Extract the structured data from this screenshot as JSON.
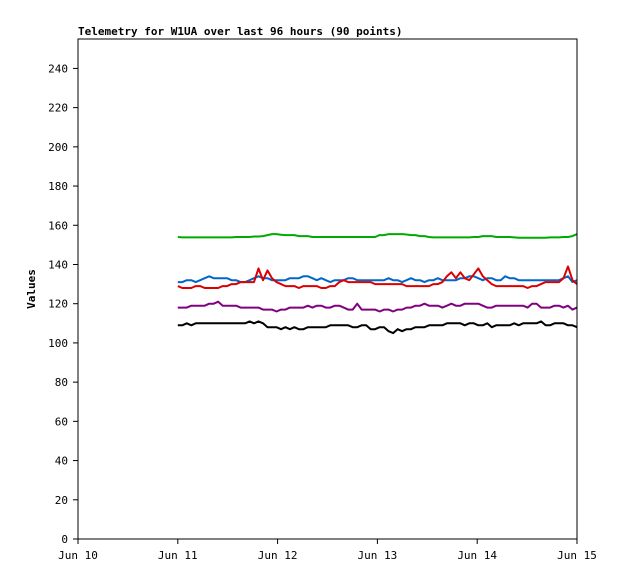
{
  "chart_data": {
    "type": "line",
    "title": "Telemetry for W1UA over last 96 hours (90 points)",
    "xlabel": "",
    "ylabel": "Values",
    "ylim": [
      0,
      255
    ],
    "yticks": [
      0,
      20,
      40,
      60,
      80,
      100,
      120,
      140,
      160,
      180,
      200,
      220,
      240
    ],
    "xlim": [
      "Jun 10",
      "Jun 15"
    ],
    "xticks": [
      "Jun 10",
      "Jun 11",
      "Jun 12",
      "Jun 13",
      "Jun 14",
      "Jun 15"
    ],
    "x_axis_unit": "days",
    "x_start": 1.0,
    "x_step": 0.04494,
    "grid": false,
    "legend": "none",
    "series": [
      {
        "color": "#00aa00",
        "values": [
          154,
          153.8,
          153.8,
          153.8,
          153.8,
          153.8,
          153.8,
          153.8,
          153.8,
          153.8,
          153.8,
          153.8,
          153.8,
          154,
          154,
          154,
          154,
          154.3,
          154.3,
          154.5,
          155,
          155.5,
          155.5,
          155.2,
          155,
          155,
          155,
          154.5,
          154.5,
          154.5,
          154,
          154,
          154,
          154,
          154,
          154,
          154,
          154,
          154,
          154,
          154,
          154,
          154,
          154,
          154,
          155,
          155,
          155.5,
          155.5,
          155.5,
          155.5,
          155.3,
          155,
          155,
          154.5,
          154.5,
          154,
          153.8,
          153.8,
          153.8,
          153.8,
          153.8,
          153.8,
          153.8,
          153.8,
          153.8,
          154,
          154,
          154.5,
          154.5,
          154.5,
          154,
          154,
          154,
          154,
          153.8,
          153.6,
          153.6,
          153.6,
          153.6,
          153.6,
          153.6,
          153.6,
          153.8,
          153.8,
          153.8,
          154,
          154,
          154.5,
          155.5
        ]
      },
      {
        "color": "#0066cc",
        "values": [
          131,
          131,
          132,
          132,
          131,
          132,
          133,
          134,
          133,
          133,
          133,
          133,
          132,
          132,
          131,
          131,
          132,
          133,
          134,
          133,
          133,
          132,
          132,
          132,
          132,
          133,
          133,
          133,
          134,
          134,
          133,
          132,
          133,
          132,
          131,
          132,
          132,
          132,
          133,
          133,
          132,
          132,
          132,
          132,
          132,
          132,
          132,
          133,
          132,
          132,
          131,
          132,
          133,
          132,
          132,
          131,
          132,
          132,
          133,
          132,
          132,
          132,
          132,
          133,
          133,
          134,
          134,
          133,
          132,
          133,
          133,
          132,
          132,
          134,
          133,
          133,
          132,
          132,
          132,
          132,
          132,
          132,
          132,
          132,
          132,
          132,
          133,
          134,
          131,
          132
        ]
      },
      {
        "color": "#dd0000",
        "values": [
          129,
          128,
          128,
          128,
          129,
          129,
          128,
          128,
          128,
          128,
          129,
          129,
          130,
          130,
          131,
          131,
          131,
          131,
          138,
          132,
          137,
          133,
          131,
          130,
          129,
          129,
          129,
          128,
          129,
          129,
          129,
          129,
          128,
          128,
          129,
          129,
          131,
          132,
          131,
          131,
          131,
          131,
          131,
          131,
          130,
          130,
          130,
          130,
          130,
          130,
          130,
          129,
          129,
          129,
          129,
          129,
          129,
          130,
          130,
          131,
          134,
          136,
          133,
          136,
          133,
          132,
          135,
          138,
          134,
          132,
          130,
          129,
          129,
          129,
          129,
          129,
          129,
          129,
          128,
          129,
          129,
          130,
          131,
          131,
          131,
          131,
          133,
          139,
          132,
          130
        ]
      },
      {
        "color": "#800080",
        "values": [
          118,
          118,
          118,
          119,
          119,
          119,
          119,
          120,
          120,
          121,
          119,
          119,
          119,
          119,
          118,
          118,
          118,
          118,
          118,
          117,
          117,
          117,
          116,
          117,
          117,
          118,
          118,
          118,
          118,
          119,
          118,
          119,
          119,
          118,
          118,
          119,
          119,
          118,
          117,
          117,
          120,
          117,
          117,
          117,
          117,
          116,
          117,
          117,
          116,
          117,
          117,
          118,
          118,
          119,
          119,
          120,
          119,
          119,
          119,
          118,
          119,
          120,
          119,
          119,
          120,
          120,
          120,
          120,
          119,
          118,
          118,
          119,
          119,
          119,
          119,
          119,
          119,
          119,
          118,
          120,
          120,
          118,
          118,
          118,
          119,
          119,
          118,
          119,
          117,
          118
        ]
      },
      {
        "color": "#000000",
        "values": [
          109,
          109,
          110,
          109,
          110,
          110,
          110,
          110,
          110,
          110,
          110,
          110,
          110,
          110,
          110,
          110,
          111,
          110,
          111,
          110,
          108,
          108,
          108,
          107,
          108,
          107,
          108,
          107,
          107,
          108,
          108,
          108,
          108,
          108,
          109,
          109,
          109,
          109,
          109,
          108,
          108,
          109,
          109,
          107,
          107,
          108,
          108,
          106,
          105,
          107,
          106,
          107,
          107,
          108,
          108,
          108,
          109,
          109,
          109,
          109,
          110,
          110,
          110,
          110,
          109,
          110,
          110,
          109,
          109,
          110,
          108,
          109,
          109,
          109,
          109,
          110,
          109,
          110,
          110,
          110,
          110,
          111,
          109,
          109,
          110,
          110,
          110,
          109,
          109,
          108
        ]
      }
    ]
  }
}
